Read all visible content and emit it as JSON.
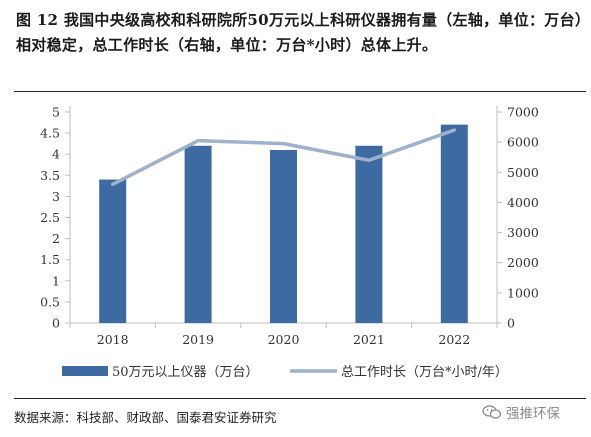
{
  "caption": "图 12 我国中央级高校和科研院所50万元以上科研仪器拥有量（左轴，单位：万台）相对稳定，总工作时长（右轴，单位：万台*小时）总体上升。",
  "source": "数据来源：科技部、财政部、国泰君安证券研究",
  "watermark": "强推环保",
  "colors": {
    "bar": "#3e6aa2",
    "line": "#9eb1cb"
  },
  "chart_data": {
    "type": "bar+line",
    "categories": [
      "2018",
      "2019",
      "2020",
      "2021",
      "2022"
    ],
    "series": [
      {
        "name": "50万元以上仪器（万台）",
        "type": "bar",
        "axis": "left",
        "values": [
          3.4,
          4.2,
          4.1,
          4.2,
          4.7
        ]
      },
      {
        "name": "总工作时长（万台*小时/年）",
        "type": "line",
        "axis": "right",
        "values": [
          4600,
          6050,
          5950,
          5400,
          6400
        ]
      }
    ],
    "y_left": {
      "ylim": [
        0,
        5
      ],
      "ticks": [
        "0",
        "0.5",
        "1",
        "1.5",
        "2",
        "2.5",
        "3",
        "3.5",
        "4",
        "4.5",
        "5"
      ]
    },
    "y_right": {
      "ylim": [
        0,
        7000
      ],
      "ticks": [
        "0",
        "1000",
        "2000",
        "3000",
        "4000",
        "5000",
        "6000",
        "7000"
      ]
    },
    "grid": false,
    "legend_position": "bottom"
  }
}
